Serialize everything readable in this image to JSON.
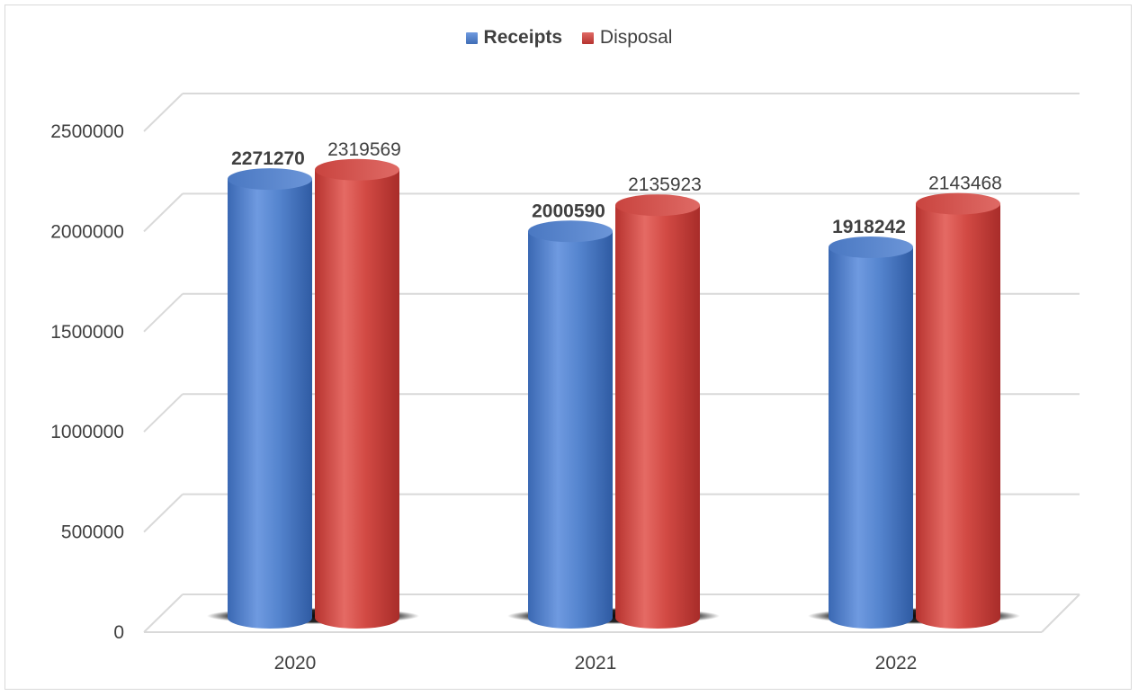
{
  "chart_data": {
    "type": "bar",
    "categories": [
      "2020",
      "2021",
      "2022"
    ],
    "series": [
      {
        "name": "Receipts",
        "values": [
          2271270,
          2000590,
          1918242
        ],
        "color": "#4f7fc6"
      },
      {
        "name": "Disposal",
        "values": [
          2319569,
          2135923,
          2143468
        ],
        "color": "#c9443f"
      }
    ],
    "ylim": [
      0,
      2500000
    ],
    "yticks": [
      "0",
      "500000",
      "1000000",
      "1500000",
      "2000000",
      "2500000"
    ],
    "grid": true,
    "legend": "top-center",
    "style": "3d-cylinder"
  }
}
